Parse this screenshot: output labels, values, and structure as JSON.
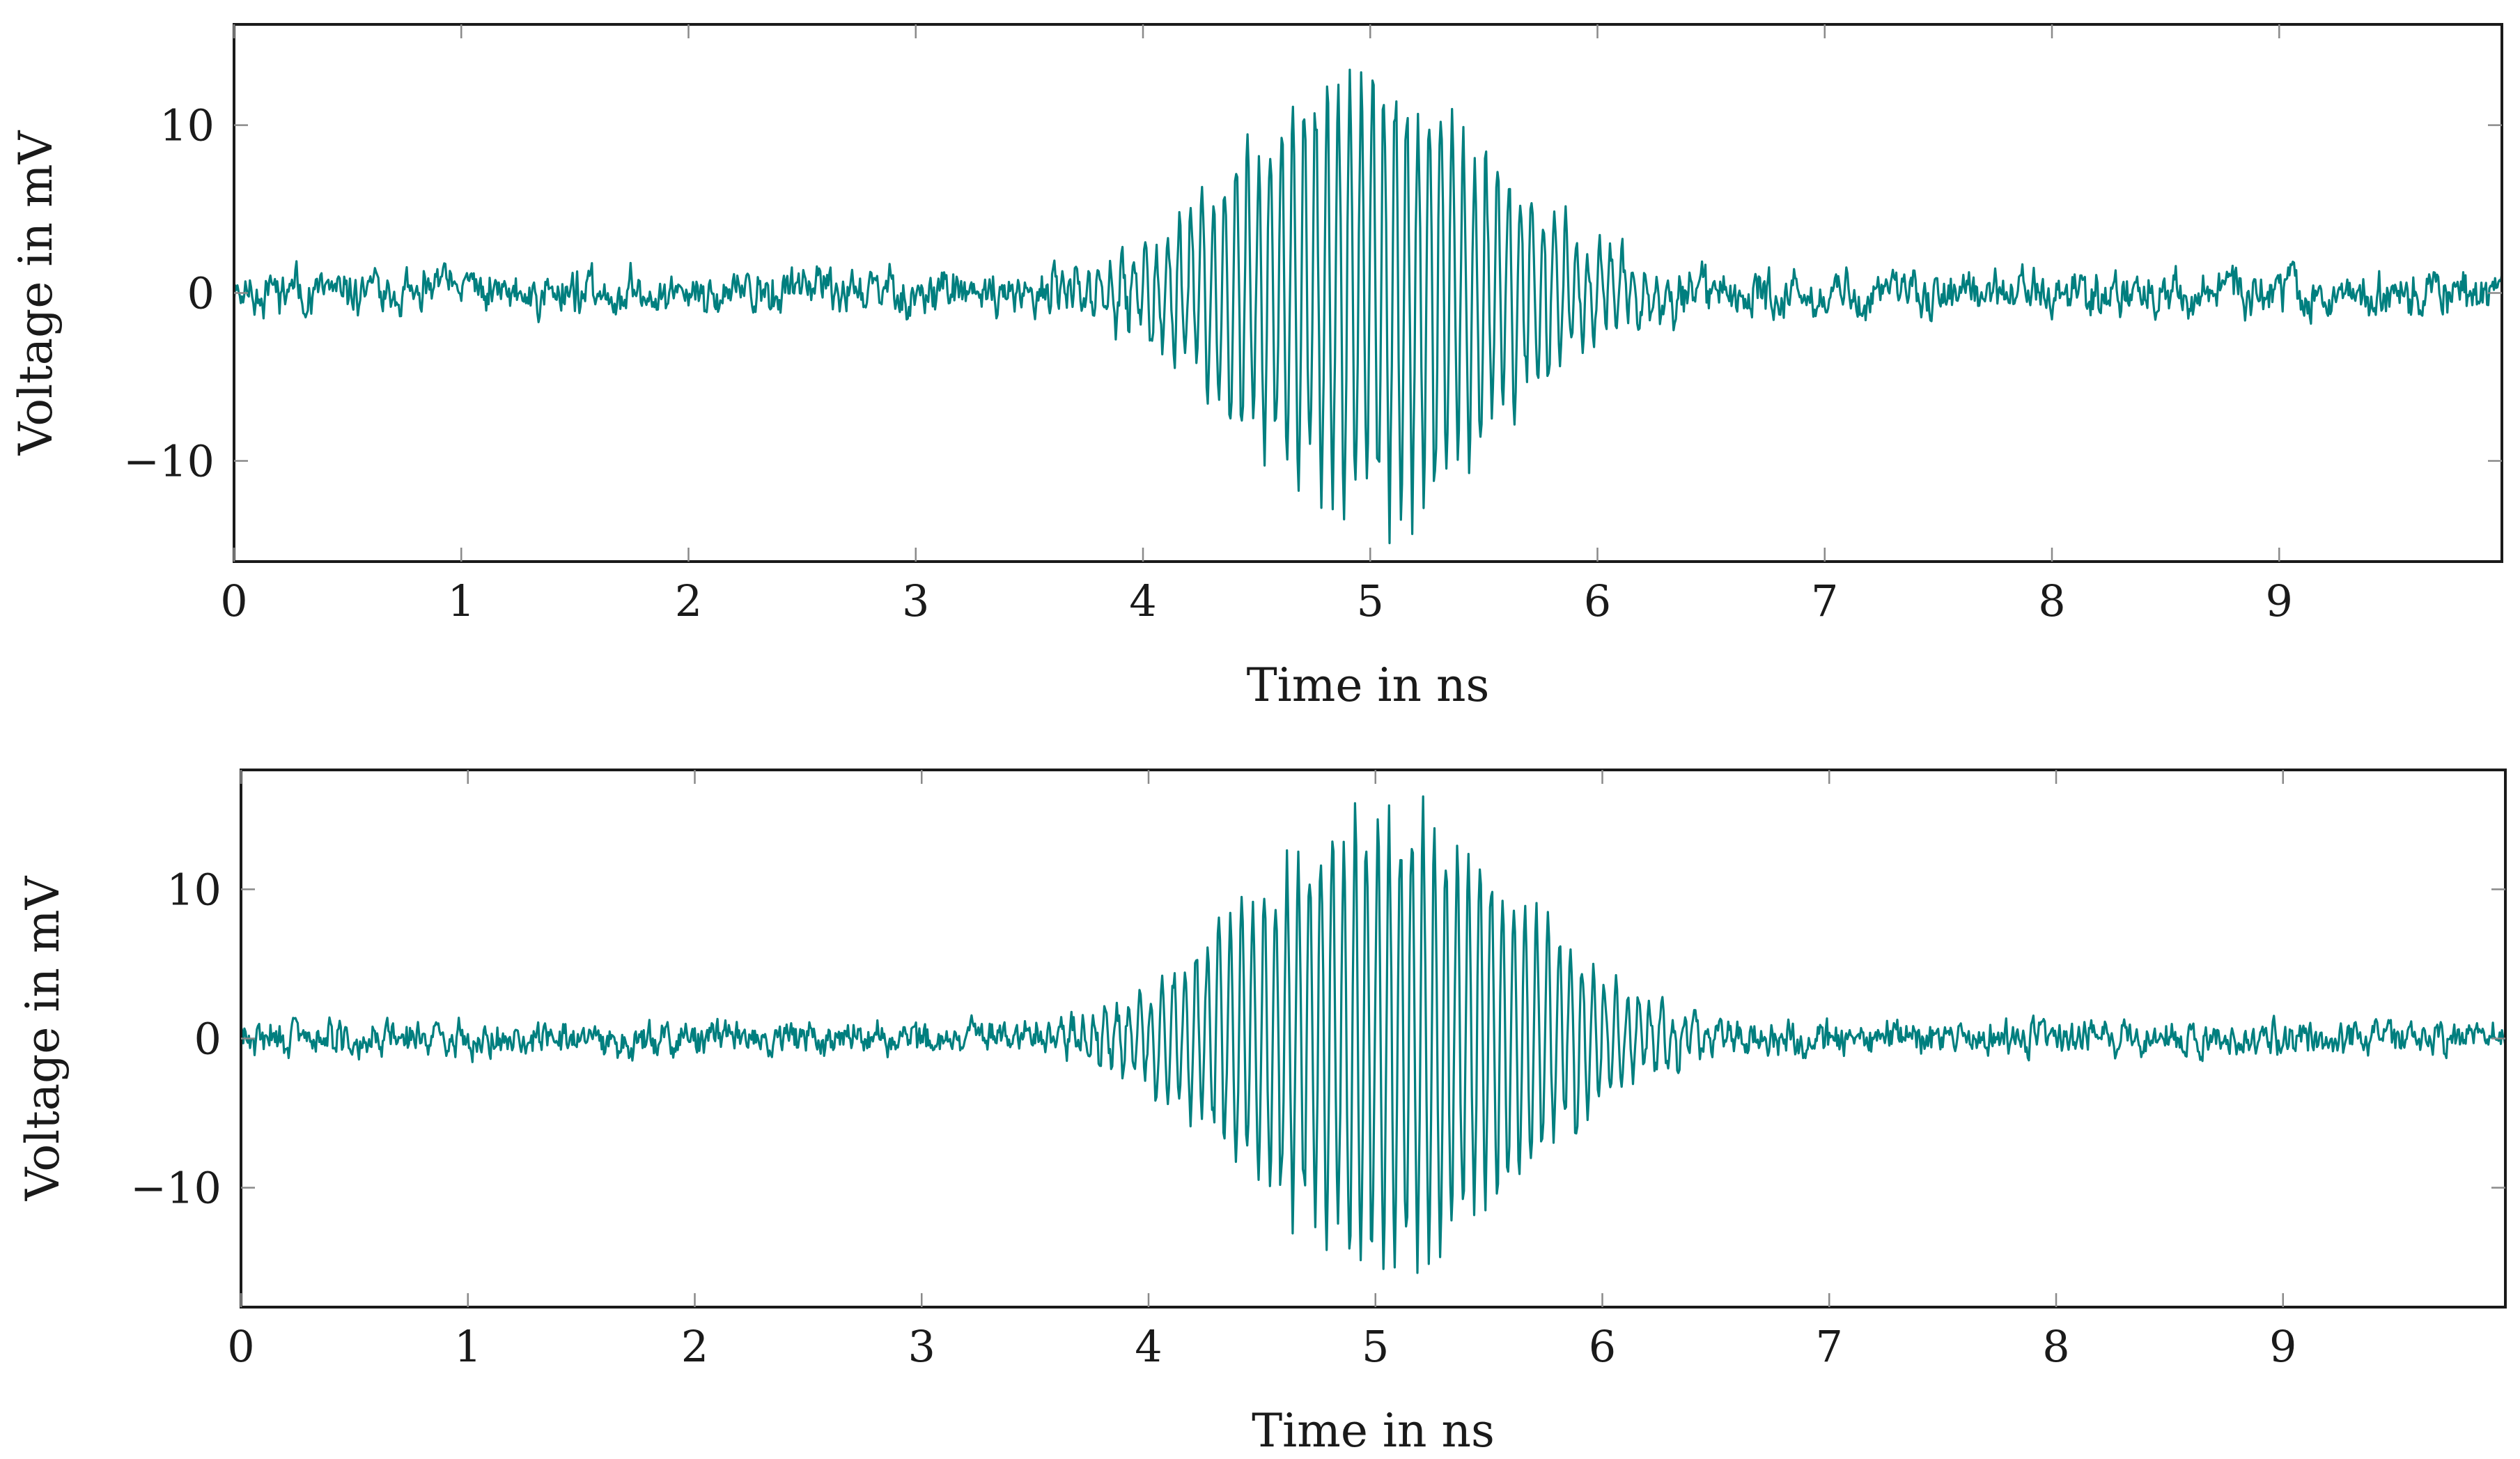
{
  "chart_data": [
    {
      "type": "line",
      "xlabel": "Time in ns",
      "ylabel": "Voltage in mV",
      "xlim": [
        0,
        9.98
      ],
      "ylim": [
        -16,
        16
      ],
      "xticks": [
        "0",
        "1",
        "2",
        "3",
        "4",
        "5",
        "6",
        "7",
        "8",
        "9"
      ],
      "yticks": [
        "−10",
        "0",
        "10"
      ],
      "grid": false,
      "line_color": "#007f7f",
      "series": [
        {
          "signal": {
            "kind": "noisy gaussian-enveloped burst",
            "center_ns": 5.0,
            "envelope_sigma_ns": 0.55,
            "peak_amplitude_mV": 12.5,
            "carrier_period_ns": 0.05,
            "noise_amplitude_mV": 0.8,
            "x_step_ns": 0.005
          }
        }
      ]
    },
    {
      "type": "line",
      "xlabel": "Time in ns",
      "ylabel": "Voltage in mV",
      "xlim": [
        0,
        9.98
      ],
      "ylim": [
        -18,
        18
      ],
      "xticks": [
        "0",
        "1",
        "2",
        "3",
        "4",
        "5",
        "6",
        "7",
        "8",
        "9"
      ],
      "yticks": [
        "−10",
        "0",
        "10"
      ],
      "grid": false,
      "line_color": "#007f7f",
      "series": [
        {
          "signal": {
            "kind": "noisy gaussian-enveloped burst",
            "center_ns": 5.05,
            "envelope_sigma_ns": 0.6,
            "peak_amplitude_mV": 14.0,
            "carrier_period_ns": 0.05,
            "noise_amplitude_mV": 0.7,
            "x_step_ns": 0.005
          }
        }
      ]
    }
  ]
}
